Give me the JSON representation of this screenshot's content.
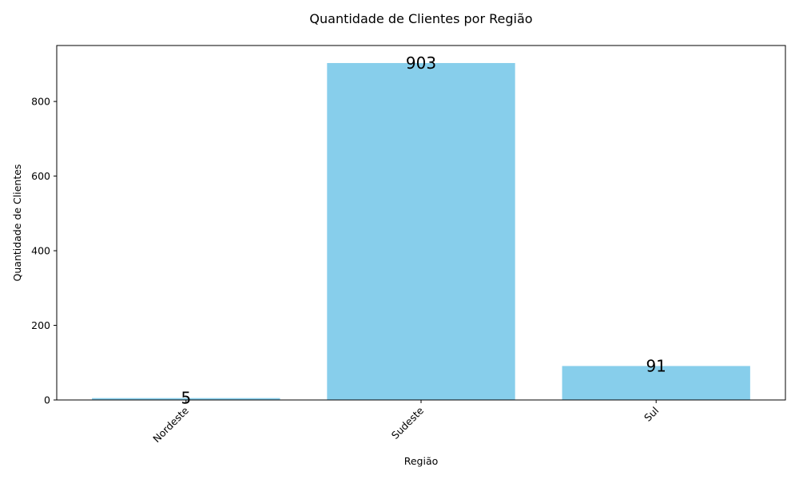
{
  "chart_data": {
    "type": "bar",
    "title": "Quantidade de Clientes por Região",
    "xlabel": "Região",
    "ylabel": "Quantidade de Clientes",
    "categories": [
      "Nordeste",
      "Sudeste",
      "Sul"
    ],
    "values": [
      5,
      903,
      91
    ],
    "value_labels": [
      "5",
      "903",
      "91"
    ],
    "ylim": [
      0,
      950
    ],
    "yticks": [
      0,
      200,
      400,
      600,
      800
    ],
    "ytick_labels": [
      "0",
      "200",
      "400",
      "600",
      "800"
    ],
    "bar_color": "#87ceeb",
    "grid": false,
    "legend": "none"
  }
}
